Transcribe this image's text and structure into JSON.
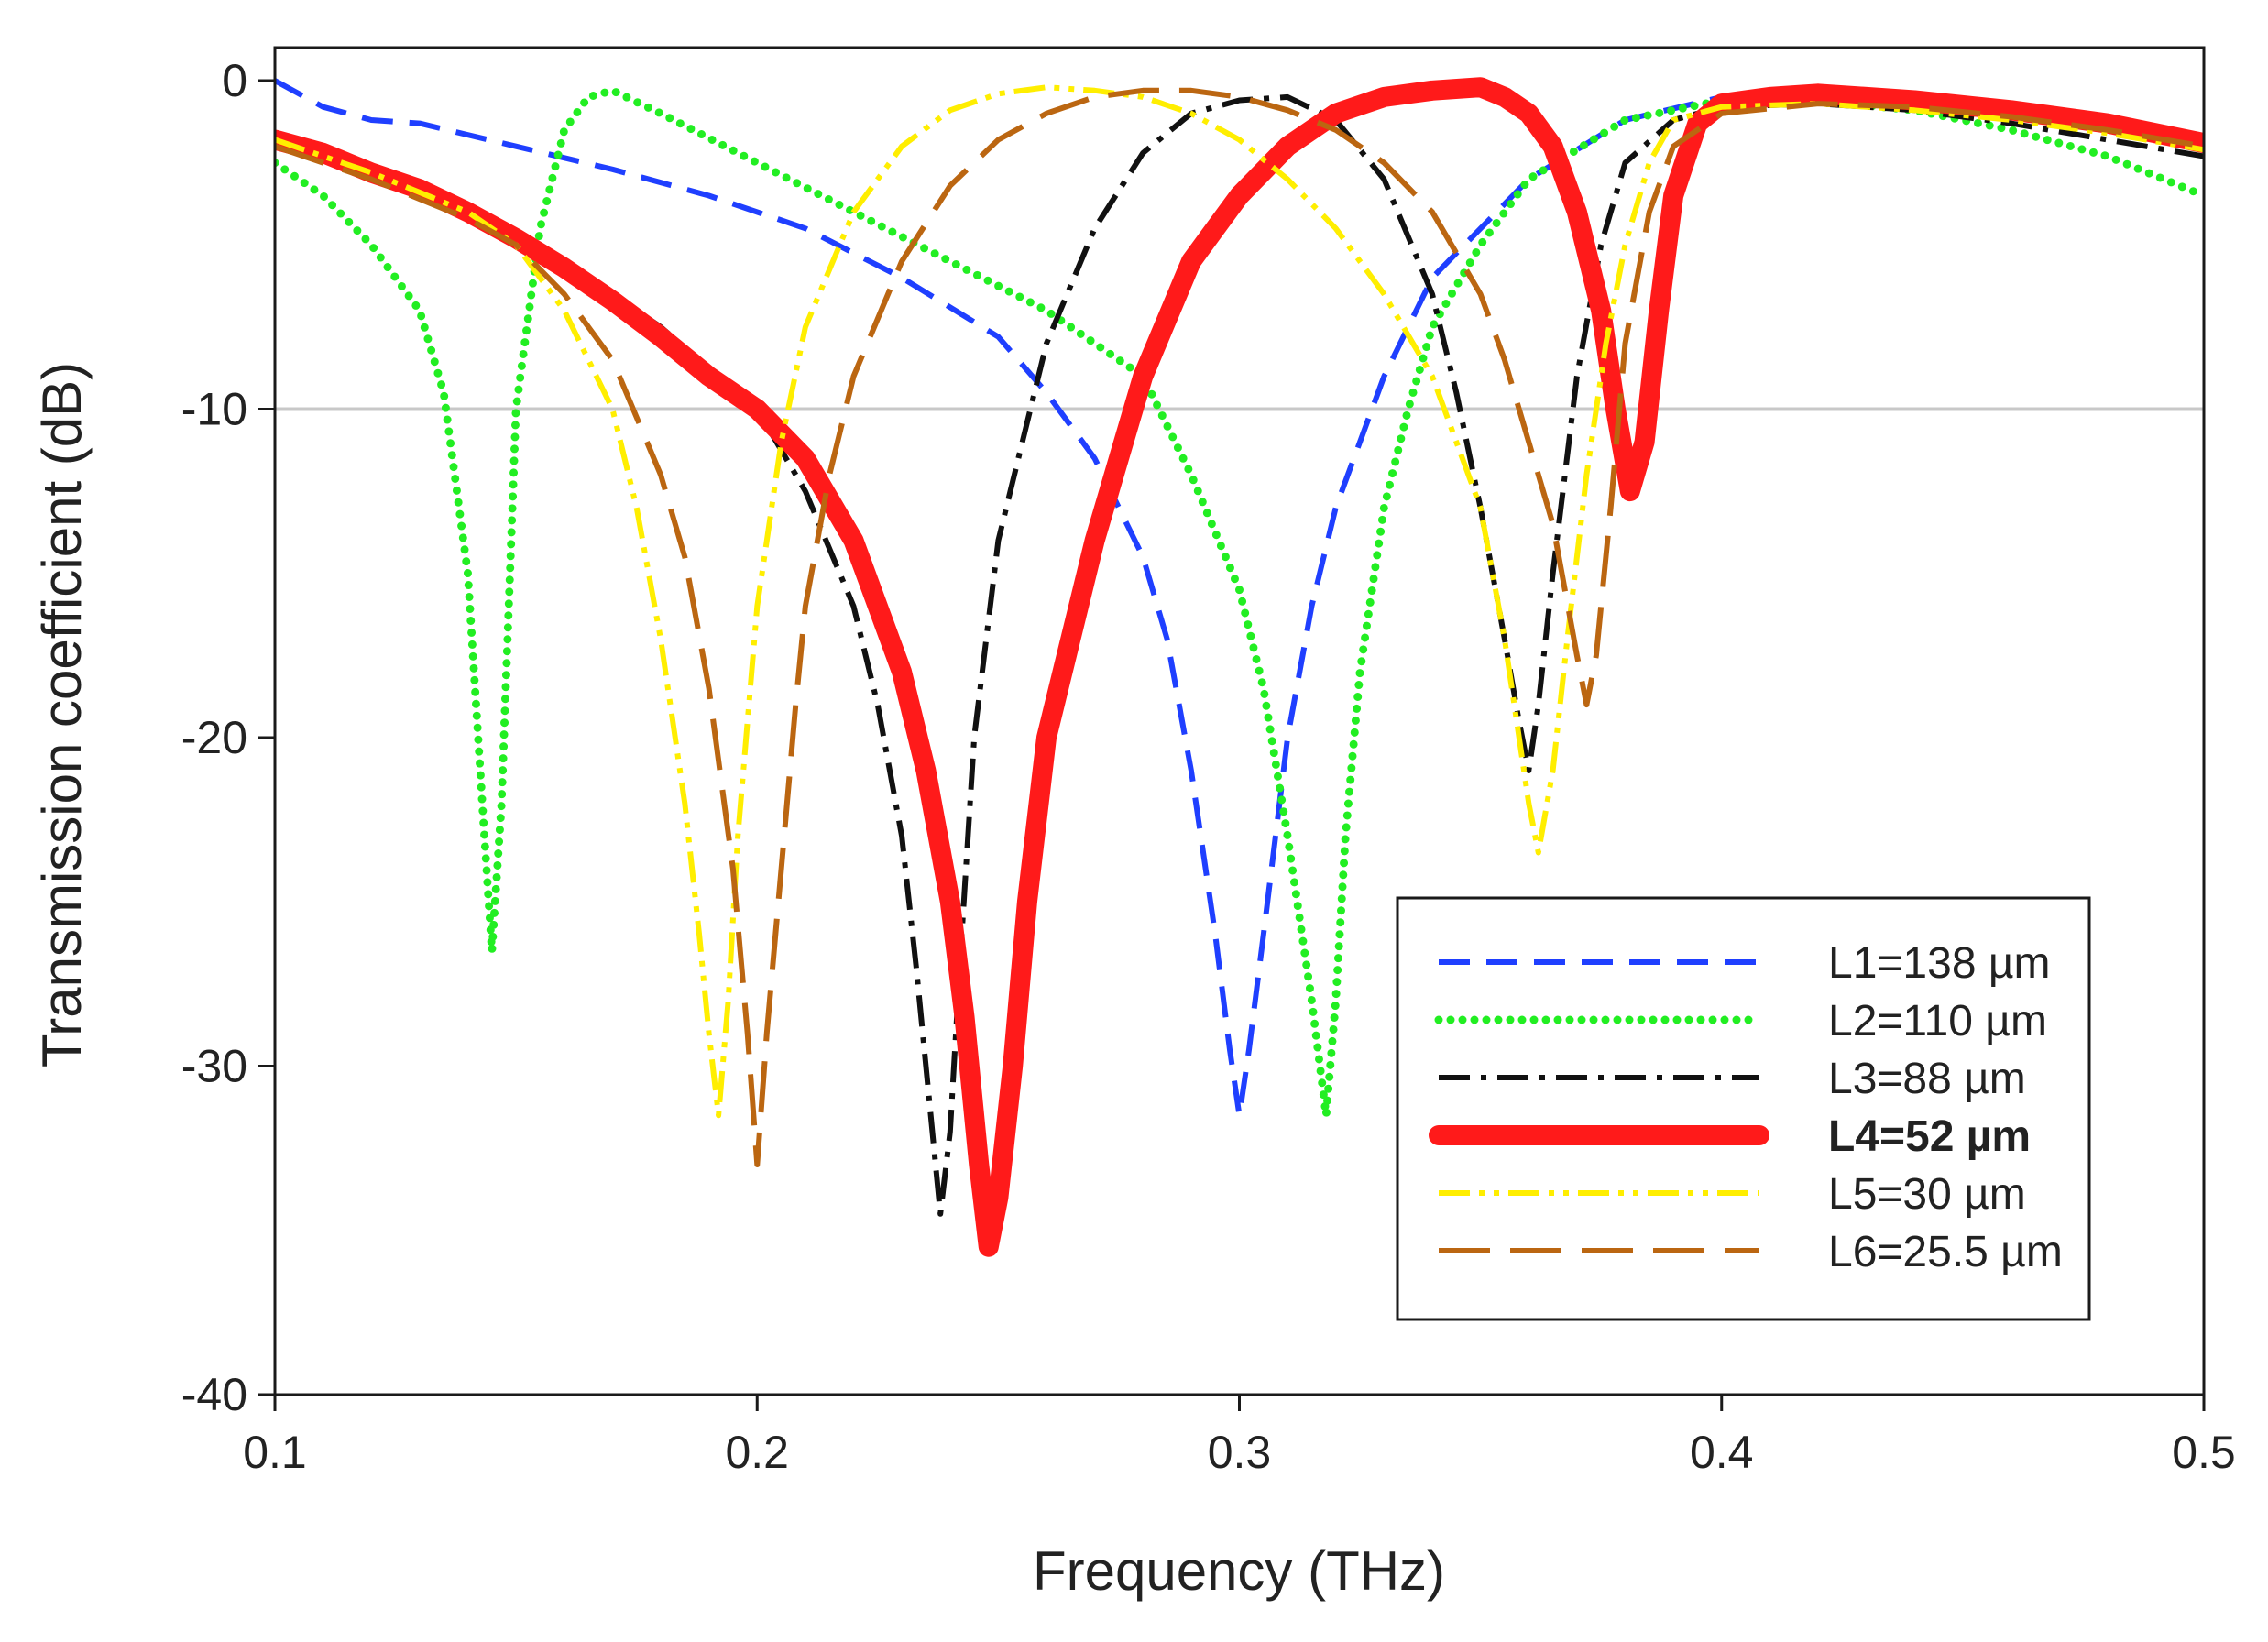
{
  "chart_data": {
    "type": "line",
    "title": "",
    "xlabel": "Frequency (THz)",
    "ylabel": "Transmission coefficient (dB)",
    "xlim": [
      0.1,
      0.5
    ],
    "ylim": [
      -40,
      2
    ],
    "xticks": [
      0.1,
      0.2,
      0.3,
      0.4,
      0.5
    ],
    "xtick_labels": [
      "0.1",
      "0.2",
      "0.3",
      "0.4",
      "0.5"
    ],
    "yticks": [
      0,
      -10,
      -20,
      -30,
      -40
    ],
    "ytick_labels": [
      "0",
      "-10",
      "-20",
      "-30",
      "-40"
    ],
    "reference_line_y": -10,
    "legend_position": "bottom-right",
    "series": [
      {
        "name": "L1=138 µm",
        "color": "#1f3fff",
        "dash": "dashed",
        "width": "normal",
        "x": [
          0.1,
          0.11,
          0.12,
          0.13,
          0.15,
          0.17,
          0.19,
          0.21,
          0.23,
          0.25,
          0.26,
          0.27,
          0.28,
          0.285,
          0.29,
          0.295,
          0.298,
          0.3,
          0.302,
          0.305,
          0.31,
          0.315,
          0.32,
          0.33,
          0.34,
          0.36,
          0.38,
          0.4,
          0.42,
          0.44,
          0.46,
          0.48,
          0.5
        ],
        "y": [
          0,
          -0.8,
          -1.2,
          -1.3,
          -2,
          -2.7,
          -3.5,
          -4.5,
          -6,
          -7.8,
          -9.5,
          -11.5,
          -14.5,
          -17,
          -21,
          -26,
          -29.5,
          -31.5,
          -29.5,
          -26,
          -20,
          -16,
          -13,
          -9,
          -6,
          -3,
          -1.2,
          -0.5,
          -0.5,
          -0.7,
          -1.0,
          -1.3,
          -1.8
        ]
      },
      {
        "name": "L2=110 µm",
        "color": "#22ee22",
        "dash": "dotted",
        "width": "normal",
        "x": [
          0.1,
          0.11,
          0.12,
          0.13,
          0.135,
          0.14,
          0.143,
          0.145,
          0.147,
          0.15,
          0.155,
          0.16,
          0.165,
          0.17,
          0.18,
          0.2,
          0.22,
          0.24,
          0.26,
          0.28,
          0.29,
          0.3,
          0.305,
          0.31,
          0.315,
          0.318,
          0.32,
          0.322,
          0.325,
          0.33,
          0.335,
          0.34,
          0.35,
          0.36,
          0.38,
          0.4,
          0.42,
          0.44,
          0.46,
          0.48,
          0.5
        ],
        "y": [
          -2.5,
          -3.5,
          -5,
          -7,
          -9.5,
          -15,
          -22,
          -26.5,
          -22,
          -10,
          -4.5,
          -1.5,
          -0.5,
          -0.3,
          -1,
          -2.5,
          -4,
          -5.5,
          -7,
          -9,
          -12,
          -15.5,
          -18.5,
          -23,
          -28,
          -31.5,
          -28,
          -23,
          -18,
          -13,
          -10,
          -7.5,
          -5,
          -3,
          -1.2,
          -0.6,
          -0.6,
          -0.9,
          -1.5,
          -2.3,
          -3.5
        ]
      },
      {
        "name": "L3=88 µm",
        "color": "#111111",
        "dash": "dashdot",
        "width": "normal",
        "x": [
          0.1,
          0.12,
          0.14,
          0.16,
          0.18,
          0.2,
          0.21,
          0.22,
          0.225,
          0.23,
          0.233,
          0.236,
          0.238,
          0.24,
          0.242,
          0.245,
          0.25,
          0.26,
          0.27,
          0.28,
          0.29,
          0.3,
          0.31,
          0.32,
          0.33,
          0.34,
          0.345,
          0.35,
          0.355,
          0.358,
          0.36,
          0.362,
          0.365,
          0.37,
          0.375,
          0.38,
          0.39,
          0.4,
          0.42,
          0.44,
          0.46,
          0.48,
          0.5
        ],
        "y": [
          -1.8,
          -2.8,
          -4,
          -5.5,
          -7.5,
          -10,
          -12.5,
          -16,
          -19,
          -23,
          -27,
          -31.5,
          -34.5,
          -32,
          -27,
          -20,
          -14,
          -8,
          -4.5,
          -2.2,
          -1,
          -0.6,
          -0.5,
          -1.2,
          -3,
          -6.5,
          -9.5,
          -13,
          -17,
          -19.5,
          -21,
          -19,
          -15,
          -9,
          -5,
          -2.5,
          -1.2,
          -0.8,
          -0.7,
          -0.9,
          -1.3,
          -1.8,
          -2.3
        ]
      },
      {
        "name": "L4=52 µm",
        "color": "#ff1a1a",
        "dash": "solid",
        "width": "thick",
        "bold_label": true,
        "x": [
          0.1,
          0.11,
          0.12,
          0.13,
          0.14,
          0.15,
          0.16,
          0.17,
          0.18,
          0.19,
          0.2,
          0.21,
          0.22,
          0.23,
          0.235,
          0.24,
          0.243,
          0.246,
          0.248,
          0.25,
          0.253,
          0.256,
          0.26,
          0.27,
          0.28,
          0.29,
          0.3,
          0.31,
          0.32,
          0.33,
          0.34,
          0.35,
          0.355,
          0.36,
          0.365,
          0.37,
          0.375,
          0.378,
          0.381,
          0.384,
          0.387,
          0.39,
          0.395,
          0.4,
          0.41,
          0.42,
          0.44,
          0.46,
          0.48,
          0.5
        ],
        "y": [
          -1.8,
          -2.2,
          -2.8,
          -3.3,
          -4,
          -4.8,
          -5.7,
          -6.7,
          -7.8,
          -9,
          -10,
          -11.5,
          -14,
          -18,
          -21,
          -25,
          -28.5,
          -33,
          -35.5,
          -34,
          -30,
          -25,
          -20,
          -14,
          -9,
          -5.5,
          -3.5,
          -2,
          -1,
          -0.5,
          -0.3,
          -0.2,
          -0.5,
          -1,
          -2,
          -4,
          -7,
          -10,
          -12.5,
          -11,
          -7,
          -3.5,
          -1.3,
          -0.7,
          -0.5,
          -0.4,
          -0.6,
          -0.9,
          -1.3,
          -1.9
        ]
      },
      {
        "name": "L5=30 µm",
        "color": "#ffee00",
        "dash": "dashdotdot",
        "width": "normal",
        "x": [
          0.1,
          0.12,
          0.14,
          0.15,
          0.16,
          0.17,
          0.175,
          0.18,
          0.185,
          0.188,
          0.19,
          0.192,
          0.194,
          0.196,
          0.2,
          0.205,
          0.21,
          0.22,
          0.23,
          0.24,
          0.25,
          0.26,
          0.27,
          0.28,
          0.29,
          0.3,
          0.31,
          0.32,
          0.33,
          0.34,
          0.35,
          0.355,
          0.36,
          0.362,
          0.365,
          0.368,
          0.372,
          0.376,
          0.38,
          0.385,
          0.39,
          0.4,
          0.42,
          0.44,
          0.46,
          0.48,
          0.5
        ],
        "y": [
          -1.8,
          -2.8,
          -4,
          -5,
          -7,
          -10,
          -13,
          -17,
          -22,
          -26,
          -29,
          -31.5,
          -28,
          -23,
          -16,
          -11,
          -7.5,
          -4,
          -2,
          -0.9,
          -0.4,
          -0.2,
          -0.3,
          -0.5,
          -1,
          -1.8,
          -3,
          -4.5,
          -6.5,
          -9,
          -13,
          -17,
          -22,
          -23.5,
          -21,
          -17,
          -12,
          -8,
          -5,
          -2.5,
          -1.2,
          -0.8,
          -0.7,
          -0.9,
          -1.2,
          -1.6,
          -2.1
        ]
      },
      {
        "name": "L6=25.5 µm",
        "color": "#bb6611",
        "dash": "longdash",
        "width": "normal",
        "x": [
          0.1,
          0.12,
          0.14,
          0.15,
          0.16,
          0.17,
          0.18,
          0.185,
          0.19,
          0.195,
          0.198,
          0.2,
          0.202,
          0.205,
          0.208,
          0.21,
          0.215,
          0.22,
          0.23,
          0.24,
          0.25,
          0.26,
          0.27,
          0.28,
          0.29,
          0.3,
          0.31,
          0.32,
          0.33,
          0.34,
          0.35,
          0.355,
          0.36,
          0.365,
          0.37,
          0.372,
          0.374,
          0.377,
          0.38,
          0.385,
          0.39,
          0.4,
          0.42,
          0.44,
          0.46,
          0.48,
          0.5
        ],
        "y": [
          -2,
          -3,
          -4.2,
          -5,
          -6.5,
          -8.5,
          -12,
          -14.5,
          -18.5,
          -24,
          -29,
          -33,
          -29,
          -24,
          -19,
          -16,
          -12,
          -9,
          -5.5,
          -3.2,
          -1.8,
          -1,
          -0.5,
          -0.3,
          -0.3,
          -0.5,
          -0.9,
          -1.5,
          -2.5,
          -4,
          -6.5,
          -8.5,
          -11,
          -13.5,
          -17.5,
          -19,
          -17.5,
          -13,
          -8,
          -4,
          -2,
          -1,
          -0.7,
          -0.8,
          -1.1,
          -1.5,
          -2.0
        ]
      }
    ]
  }
}
